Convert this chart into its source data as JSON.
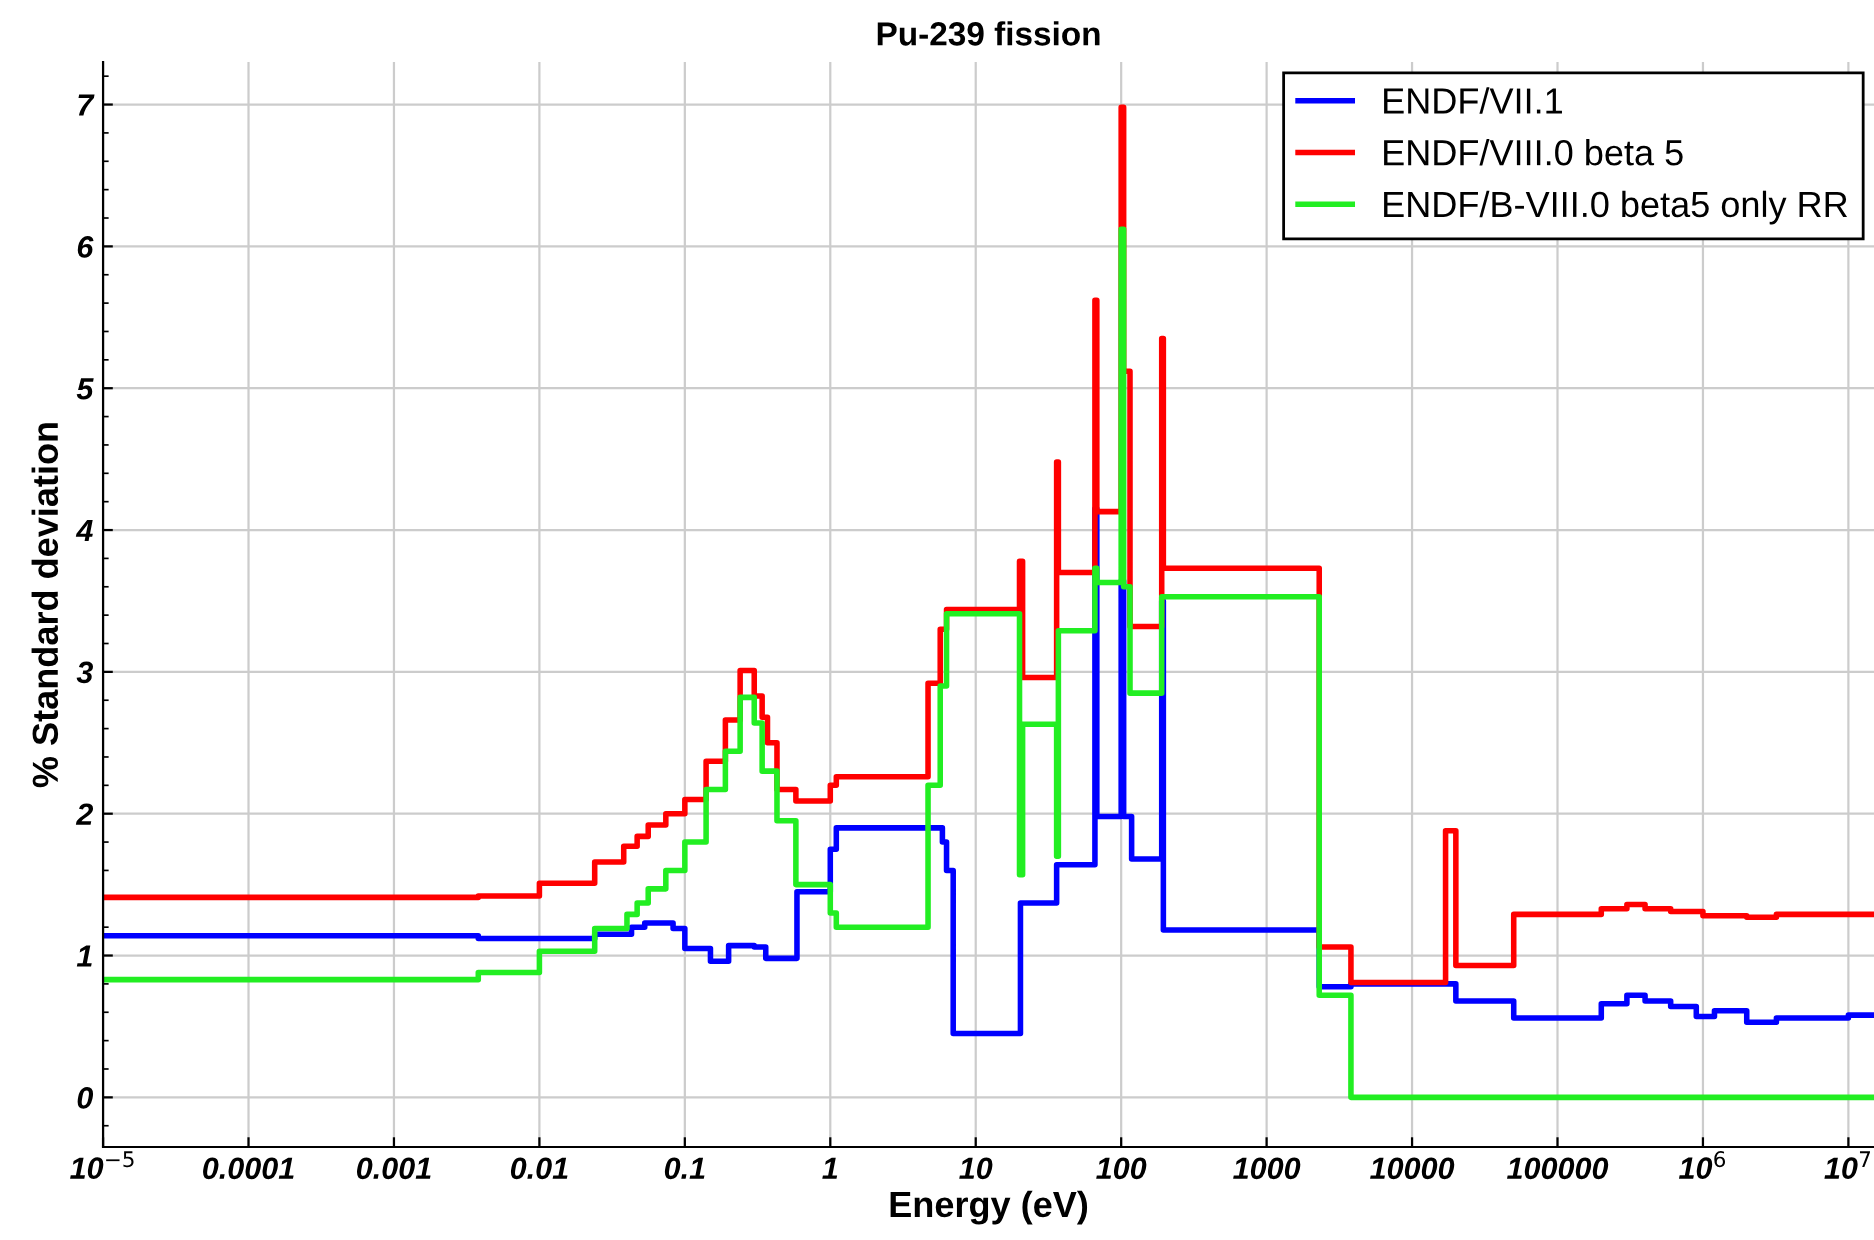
{
  "chart_data": {
    "type": "step",
    "title": "Pu-239 fission",
    "xlabel": "Energy (eV)",
    "ylabel": "% Standard deviation",
    "log": "x",
    "grid": true,
    "legend": "top right",
    "line_style": "solid",
    "marker": "none",
    "xlim": [
      1e-05,
      15000000
    ],
    "ylim": [
      -0.35,
      7.3
    ],
    "xticks": [
      {
        "value": 1e-05,
        "label": "10$^{−5}$"
      },
      {
        "value": 0.0001,
        "label": "0.0001"
      },
      {
        "value": 0.001,
        "label": "0.001"
      },
      {
        "value": 0.01,
        "label": "0.01"
      },
      {
        "value": 0.1,
        "label": "0.1"
      },
      {
        "value": 1,
        "label": "1"
      },
      {
        "value": 10,
        "label": "10"
      },
      {
        "value": 100,
        "label": "100"
      },
      {
        "value": 1000,
        "label": "1000"
      },
      {
        "value": 10000,
        "label": "10000"
      },
      {
        "value": 100000,
        "label": "100000"
      },
      {
        "value": 1000000,
        "label": "10$^{6}$"
      },
      {
        "value": 10000000,
        "label": "10$^{7}$"
      }
    ],
    "yticks": [
      0,
      1,
      2,
      3,
      4,
      5,
      6,
      7
    ],
    "series": [
      {
        "name": "ENDF/VII.1",
        "color": "#0000ff",
        "x": [
          1e-05,
          0.0038,
          0.024,
          0.043,
          0.053,
          0.083,
          0.1,
          0.15,
          0.2,
          0.3,
          0.36,
          0.59,
          1.0,
          1.1,
          5.9,
          6.3,
          7.0,
          20.3,
          36,
          66,
          68,
          100,
          104,
          118,
          190,
          195,
          2300,
          3800,
          20000,
          50000,
          200000,
          300000,
          400000,
          600000,
          900000,
          1200000,
          2000000,
          3200000,
          10000000,
          15000000
        ],
        "values": [
          1.14,
          1.12,
          1.15,
          1.2,
          1.23,
          1.19,
          1.05,
          0.96,
          1.07,
          1.06,
          0.98,
          1.45,
          1.75,
          1.9,
          1.8,
          1.6,
          0.45,
          1.37,
          1.64,
          4.15,
          1.98,
          3.64,
          1.98,
          1.68,
          3.5,
          1.18,
          0.78,
          0.8,
          0.68,
          0.56,
          0.66,
          0.72,
          0.68,
          0.64,
          0.57,
          0.61,
          0.53,
          0.56,
          0.58,
          0.58
        ]
      },
      {
        "name": "ENDF/VIII.0 beta 5",
        "color": "#ff0000",
        "x": [
          1e-05,
          0.0038,
          0.01,
          0.024,
          0.038,
          0.047,
          0.056,
          0.074,
          0.1,
          0.14,
          0.19,
          0.24,
          0.3,
          0.34,
          0.37,
          0.43,
          0.58,
          1.0,
          1.1,
          4.7,
          5.7,
          6.3,
          20,
          21,
          36,
          37,
          66,
          68,
          100,
          104,
          115,
          190,
          195,
          2300,
          3800,
          17000,
          20000,
          50000,
          200000,
          300000,
          400000,
          600000,
          1000000,
          2000000,
          3200000,
          15000000
        ],
        "values": [
          1.41,
          1.42,
          1.51,
          1.66,
          1.77,
          1.84,
          1.92,
          2.0,
          2.1,
          2.37,
          2.66,
          3.01,
          2.83,
          2.68,
          2.5,
          2.17,
          2.09,
          2.2,
          2.26,
          2.92,
          3.3,
          3.44,
          3.78,
          2.96,
          4.48,
          3.7,
          5.62,
          4.13,
          6.98,
          5.12,
          3.32,
          5.35,
          3.73,
          1.06,
          0.81,
          1.88,
          0.93,
          1.29,
          1.33,
          1.36,
          1.33,
          1.31,
          1.28,
          1.27,
          1.29,
          1.29
        ]
      },
      {
        "name": "ENDF/B-VIII.0 beta5 only RR",
        "color": "#22ee22",
        "x": [
          1e-05,
          0.0038,
          0.01,
          0.024,
          0.04,
          0.047,
          0.056,
          0.074,
          0.1,
          0.14,
          0.19,
          0.24,
          0.3,
          0.34,
          0.43,
          0.58,
          1.0,
          1.1,
          4.7,
          5.7,
          6.3,
          20,
          21,
          36,
          37,
          66,
          68,
          100,
          104,
          115,
          190,
          2300,
          3800,
          15000000
        ],
        "values": [
          0.83,
          0.88,
          1.03,
          1.19,
          1.29,
          1.37,
          1.47,
          1.6,
          1.8,
          2.17,
          2.44,
          2.82,
          2.64,
          2.3,
          1.95,
          1.5,
          1.3,
          1.2,
          2.2,
          2.9,
          3.41,
          1.57,
          2.63,
          1.7,
          3.29,
          3.73,
          3.63,
          6.12,
          3.6,
          2.85,
          3.53,
          0.72,
          0,
          0
        ]
      }
    ]
  }
}
